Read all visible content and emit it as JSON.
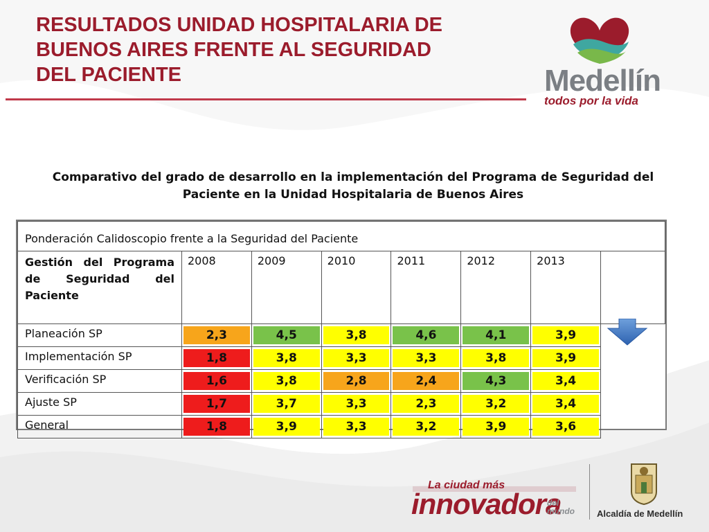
{
  "header": {
    "title": "RESULTADOS UNIDAD HOSPITALARIA DE\nBUENOS AIRES FRENTE AL SEGURIDAD\nDEL PACIENTE"
  },
  "logos": {
    "medellin_word": "Medellín",
    "medellin_slogan": "todos por la vida",
    "innovadora_top": "La ciudad más",
    "innovadora_main": "innovadora",
    "innovadora_del": "del\nmundo",
    "alcaldia": "Alcaldía de Medellín"
  },
  "subtitle": "Comparativo del grado de desarrollo en la implementación del Programa de Seguridad del Paciente  en la Unidad Hospitalaria de Buenos Aires",
  "table": {
    "header": "Ponderación Calidoscopio frente a la Seguridad del Paciente",
    "management_label": "Gestión del Programa de Seguridad del Paciente",
    "years": [
      "2008",
      "2009",
      "2010",
      "2011",
      "2012",
      "2013"
    ],
    "rows": [
      {
        "label": "Planeación SP",
        "values": [
          "2,3",
          "4,5",
          "3,8",
          "4,6",
          "4,1",
          "3,9"
        ],
        "colors": [
          "orange",
          "green",
          "yellow",
          "green",
          "green",
          "yellow"
        ]
      },
      {
        "label": "Implementación  SP",
        "values": [
          "1,8",
          "3,8",
          "3,3",
          "3,3",
          "3,8",
          "3,9"
        ],
        "colors": [
          "red",
          "yellow",
          "yellow",
          "yellow",
          "yellow",
          "yellow"
        ]
      },
      {
        "label": "Verificación  SP",
        "values": [
          "1,6",
          "3,8",
          "2,8",
          "2,4",
          "4,3",
          "3,4"
        ],
        "colors": [
          "red",
          "yellow",
          "orange",
          "orange",
          "green",
          "yellow"
        ]
      },
      {
        "label": "Ajuste  SP",
        "values": [
          "1,7",
          "3,7",
          "3,3",
          "2,3",
          "3,2",
          "3,4"
        ],
        "colors": [
          "red",
          "yellow",
          "yellow",
          "yellow",
          "yellow",
          "yellow"
        ]
      },
      {
        "label": "General",
        "values": [
          "1,8",
          "3,9",
          "3,3",
          "3,2",
          "3,9",
          "3,6"
        ],
        "colors": [
          "red",
          "yellow",
          "yellow",
          "yellow",
          "yellow",
          "yellow"
        ]
      }
    ],
    "color_map": {
      "yellow": "#ffff00",
      "green": "#79c24a",
      "orange": "#f7a51b",
      "red": "#ee1c1c"
    }
  },
  "icons": {
    "trend_arrow": "arrow-down-icon"
  }
}
